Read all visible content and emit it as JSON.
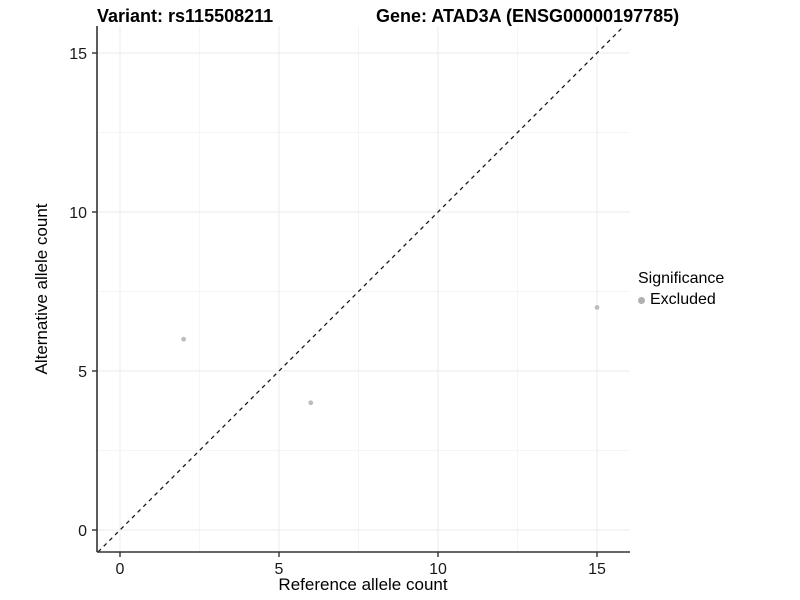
{
  "chart_data": {
    "type": "scatter",
    "title_left": "Variant: rs115508211",
    "title_right": "Gene: ATAD3A (ENSG00000197785)",
    "xlabel": "Reference allele count",
    "ylabel": "Alternative allele count",
    "xticks": [
      0,
      5,
      10,
      15
    ],
    "yticks": [
      0,
      5,
      10,
      15
    ],
    "minor_xticks": [
      2.5,
      7.5,
      12.5
    ],
    "minor_yticks": [
      2.5,
      7.5,
      12.5
    ],
    "xlim": [
      -0.72,
      16.04
    ],
    "ylim": [
      -0.69,
      15.85
    ],
    "grid": true,
    "identity_line": {
      "style": "dashed",
      "slope": 1,
      "intercept": 0
    },
    "points": [
      {
        "x": 2,
        "y": 6,
        "group": "Excluded"
      },
      {
        "x": 6,
        "y": 4,
        "group": "Excluded"
      },
      {
        "x": 15,
        "y": 7,
        "group": "Excluded"
      }
    ],
    "legend": {
      "title": "Significance",
      "position": "right",
      "entries": [
        {
          "label": "Excluded",
          "color": "#b0b0b0"
        }
      ]
    },
    "colors": {
      "point": "#bdbdbd",
      "axis": "#333333",
      "grid_major": "#ebebeb",
      "grid_minor": "#f5f5f5",
      "identity_line": "#1a1a1a",
      "tick_label": "#1a1a1a"
    }
  }
}
